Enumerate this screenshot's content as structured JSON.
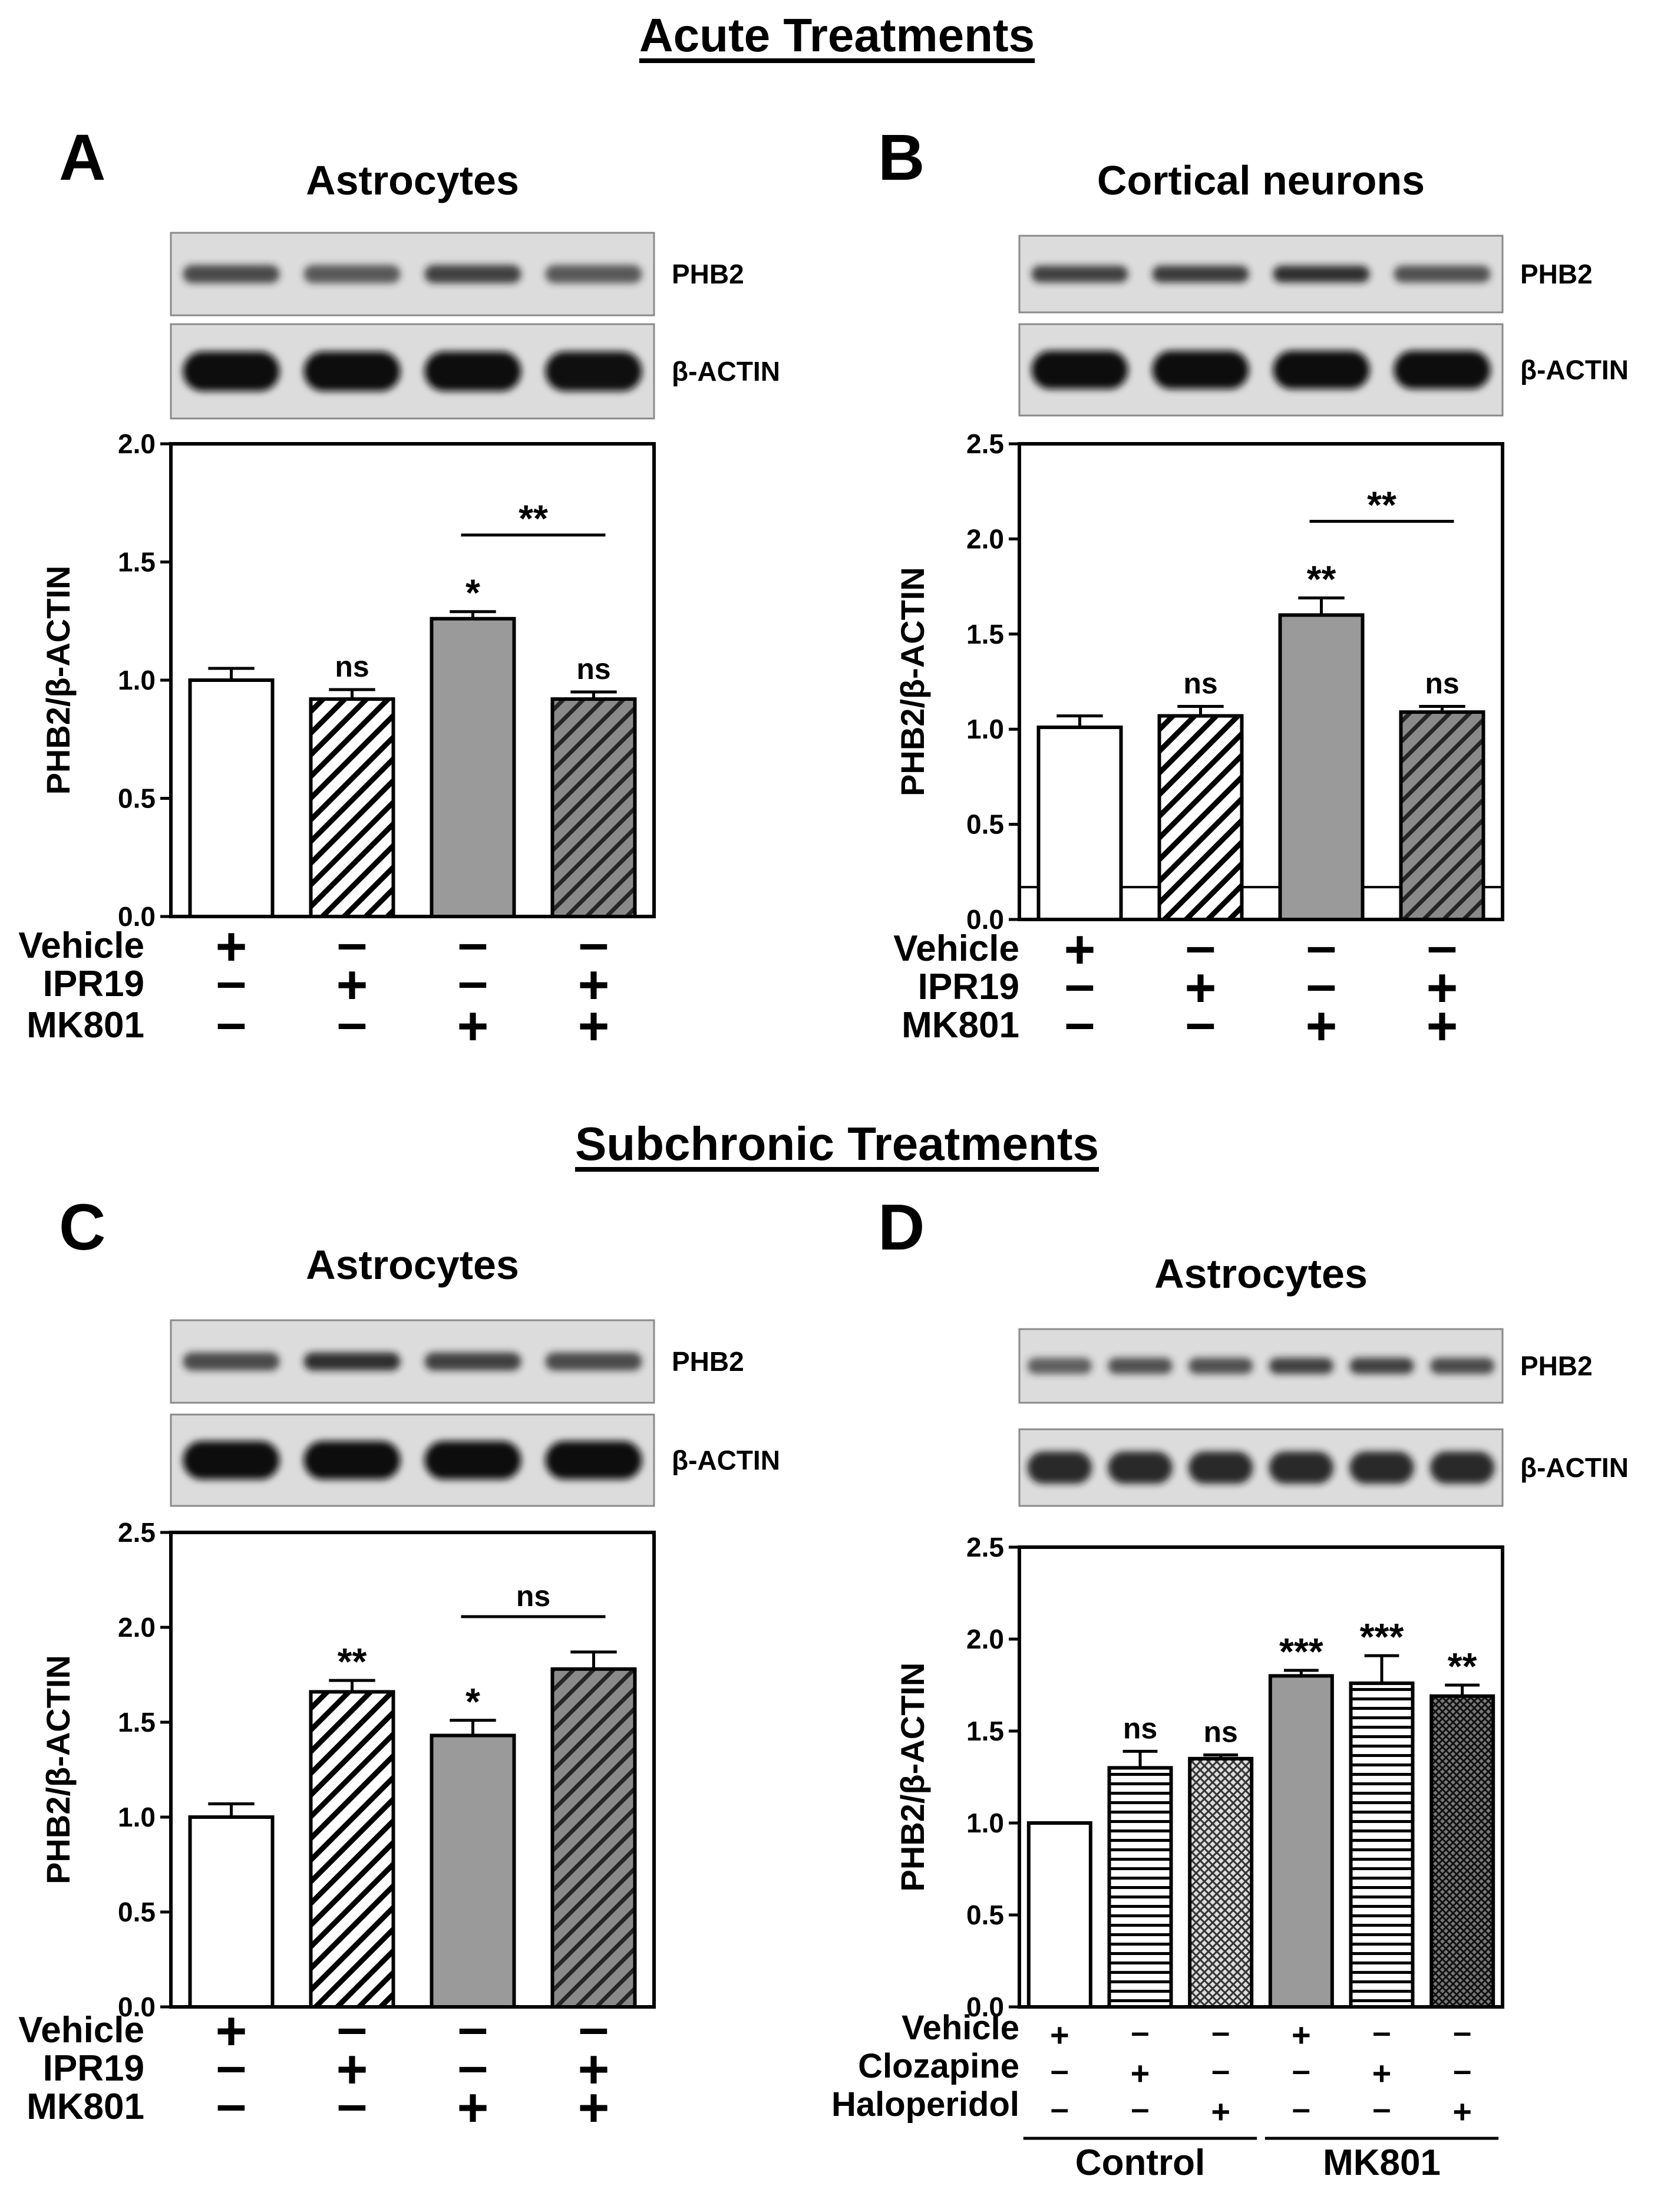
{
  "section_titles": [
    "Acute Treatments",
    "Subchronic Treatments"
  ],
  "colors": {
    "white": "#ffffff",
    "gray": "#9a9a9a",
    "dark": "#6f6f6f",
    "ink": "#000000",
    "blot_bg": "#dcdcdc"
  },
  "chart_data": [
    {
      "panel": "A",
      "type": "bar",
      "title": "Astrocytes",
      "ylabel": "PHB2/β-ACTIN",
      "ylim": [
        0,
        2.0
      ],
      "yticks": [
        "0.0",
        "0.5",
        "1.0",
        "1.5",
        "2.0"
      ],
      "values": [
        1.0,
        0.92,
        1.26,
        0.92
      ],
      "errors": [
        0.05,
        0.04,
        0.03,
        0.03
      ],
      "fills": [
        "white",
        "hatch",
        "gray",
        "darkhatch"
      ],
      "annotations": [
        "",
        "ns",
        "*",
        "ns"
      ],
      "bracket": {
        "from": 2,
        "to": 3,
        "label": "**"
      },
      "blots": [
        {
          "label": "PHB2",
          "bands": [
            0.55,
            0.45,
            0.6,
            0.45
          ]
        },
        {
          "label": "β-ACTIN",
          "bands": [
            1.0,
            1.0,
            0.95,
            0.9
          ]
        }
      ],
      "treatments": [
        {
          "name": "Vehicle",
          "signs": [
            "+",
            "–",
            "–",
            "–"
          ]
        },
        {
          "name": "IPR19",
          "signs": [
            "–",
            "+",
            "–",
            "+"
          ]
        },
        {
          "name": "MK801",
          "signs": [
            "–",
            "–",
            "+",
            "+"
          ]
        }
      ]
    },
    {
      "panel": "B",
      "type": "bar",
      "title": "Cortical neurons",
      "ylabel": "PHB2/β-ACTIN",
      "ylim": [
        0,
        2.5
      ],
      "yticks": [
        "0.0",
        "0.5",
        "1.0",
        "1.5",
        "2.0",
        "2.5"
      ],
      "values": [
        1.01,
        1.07,
        1.6,
        1.09
      ],
      "errors": [
        0.06,
        0.05,
        0.09,
        0.03
      ],
      "fills": [
        "white",
        "hatch",
        "gray",
        "darkhatch"
      ],
      "annotations": [
        "",
        "ns",
        "**",
        "ns"
      ],
      "bracket": {
        "from": 2,
        "to": 3,
        "label": "**"
      },
      "baseline_line": 0.17,
      "blots": [
        {
          "label": "PHB2",
          "bands": [
            0.6,
            0.65,
            0.7,
            0.5
          ]
        },
        {
          "label": "β-ACTIN",
          "bands": [
            1.0,
            1.0,
            1.0,
            1.0
          ]
        }
      ],
      "treatments": [
        {
          "name": "Vehicle",
          "signs": [
            "+",
            "–",
            "–",
            "–"
          ]
        },
        {
          "name": "IPR19",
          "signs": [
            "–",
            "+",
            "–",
            "+"
          ]
        },
        {
          "name": "MK801",
          "signs": [
            "–",
            "–",
            "+",
            "+"
          ]
        }
      ]
    },
    {
      "panel": "C",
      "type": "bar",
      "title": "Astrocytes",
      "ylabel": "PHB2/β-ACTIN",
      "ylim": [
        0,
        2.5
      ],
      "yticks": [
        "0.0",
        "0.5",
        "1.0",
        "1.5",
        "2.0",
        "2.5"
      ],
      "values": [
        1.0,
        1.66,
        1.43,
        1.78
      ],
      "errors": [
        0.07,
        0.06,
        0.08,
        0.09
      ],
      "fills": [
        "white",
        "hatch",
        "gray",
        "darkhatch"
      ],
      "annotations": [
        "",
        "**",
        "*",
        ""
      ],
      "bracket": {
        "from": 2,
        "to": 3,
        "label": "ns"
      },
      "blots": [
        {
          "label": "PHB2",
          "bands": [
            0.55,
            0.7,
            0.6,
            0.55
          ]
        },
        {
          "label": "β-ACTIN",
          "bands": [
            1.0,
            1.0,
            1.0,
            0.95
          ]
        }
      ],
      "treatments": [
        {
          "name": "Vehicle",
          "signs": [
            "+",
            "–",
            "–",
            "–"
          ]
        },
        {
          "name": "IPR19",
          "signs": [
            "–",
            "+",
            "–",
            "+"
          ]
        },
        {
          "name": "MK801",
          "signs": [
            "–",
            "–",
            "+",
            "+"
          ]
        }
      ]
    },
    {
      "panel": "D",
      "type": "bar",
      "title": "Astrocytes",
      "ylabel": "PHB2/β-ACTIN",
      "ylim": [
        0,
        2.5
      ],
      "yticks": [
        "0.0",
        "0.5",
        "1.0",
        "1.5",
        "2.0",
        "2.5"
      ],
      "values": [
        1.0,
        1.3,
        1.35,
        1.8,
        1.76,
        1.69
      ],
      "errors": [
        0.0,
        0.09,
        0.02,
        0.03,
        0.15,
        0.06
      ],
      "fills": [
        "white",
        "hlines",
        "crosshatch",
        "gray",
        "hlines",
        "darkcross"
      ],
      "annotations": [
        "",
        "ns",
        "ns",
        "***",
        "***",
        "**"
      ],
      "blots": [
        {
          "label": "PHB2",
          "bands": [
            0.4,
            0.5,
            0.5,
            0.6,
            0.6,
            0.55
          ]
        },
        {
          "label": "β-ACTIN",
          "bands": [
            0.75,
            0.75,
            0.75,
            0.75,
            0.75,
            0.75
          ]
        }
      ],
      "treatments": [
        {
          "name": "Vehicle",
          "signs": [
            "+",
            "–",
            "–",
            "+",
            "–",
            "–"
          ]
        },
        {
          "name": "Clozapine",
          "signs": [
            "–",
            "+",
            "–",
            "–",
            "+",
            "–"
          ]
        },
        {
          "name": "Haloperidol",
          "signs": [
            "–",
            "–",
            "+",
            "–",
            "–",
            "+"
          ]
        }
      ],
      "groups": [
        {
          "label": "Control",
          "from": 0,
          "to": 2
        },
        {
          "label": "MK801",
          "from": 3,
          "to": 5
        }
      ]
    }
  ]
}
